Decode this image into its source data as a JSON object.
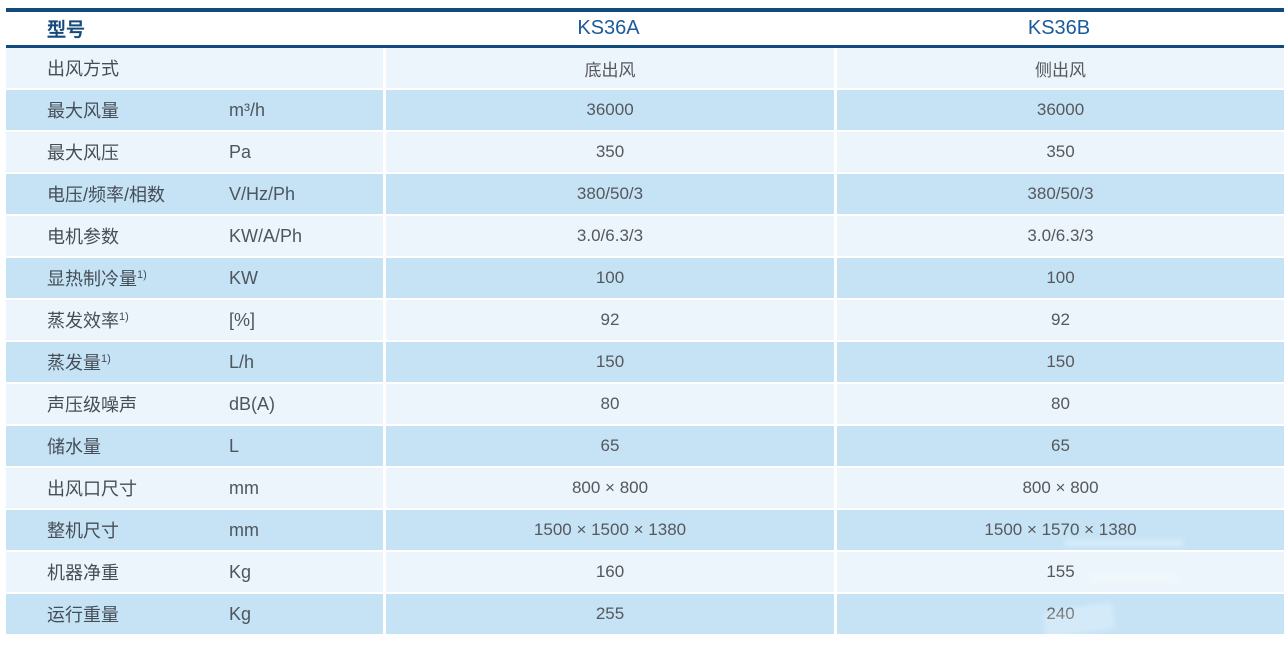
{
  "table": {
    "header": {
      "model_column_label": "型号",
      "model_a": "KS36A",
      "model_b": "KS36B"
    },
    "rows": [
      {
        "label": "出风方式",
        "sup": "",
        "unit": "",
        "a": "底出风",
        "b": "侧出风"
      },
      {
        "label": "最大风量",
        "sup": "",
        "unit": "m³/h",
        "a": "36000",
        "b": "36000"
      },
      {
        "label": "最大风压",
        "sup": "",
        "unit": "Pa",
        "a": "350",
        "b": "350"
      },
      {
        "label": "电压/频率/相数",
        "sup": "",
        "unit": "V/Hz/Ph",
        "a": "380/50/3",
        "b": "380/50/3"
      },
      {
        "label": "电机参数",
        "sup": "",
        "unit": "KW/A/Ph",
        "a": "3.0/6.3/3",
        "b": "3.0/6.3/3"
      },
      {
        "label": "显热制冷量",
        "sup": "1)",
        "unit": "KW",
        "a": "100",
        "b": "100"
      },
      {
        "label": "蒸发效率",
        "sup": "1)",
        "unit": "[%]",
        "a": "92",
        "b": "92"
      },
      {
        "label": "蒸发量",
        "sup": "1)",
        "unit": "L/h",
        "a": "150",
        "b": "150"
      },
      {
        "label": "声压级噪声",
        "sup": "",
        "unit": "dB(A)",
        "a": "80",
        "b": "80"
      },
      {
        "label": "储水量",
        "sup": "",
        "unit": "L",
        "a": "65",
        "b": "65"
      },
      {
        "label": "出风口尺寸",
        "sup": "",
        "unit": "mm",
        "a": "800 × 800",
        "b": "800 × 800"
      },
      {
        "label": "整机尺寸",
        "sup": "",
        "unit": "mm",
        "a": "1500 × 1500 × 1380",
        "b": "1500 × 1570 × 1380"
      },
      {
        "label": "机器净重",
        "sup": "",
        "unit": "Kg",
        "a": "160",
        "b": "155"
      },
      {
        "label": "运行重量",
        "sup": "",
        "unit": "Kg",
        "a": "255",
        "b": "240"
      }
    ]
  },
  "colors": {
    "border_navy": "#114a7d",
    "row_light": "#ecf5fb",
    "row_dark": "#c6e3f6",
    "model_name_blue": "#1b5b99",
    "header_label_navy": "#154a7c",
    "label_text": "#454e56",
    "value_text": "#55585c"
  }
}
